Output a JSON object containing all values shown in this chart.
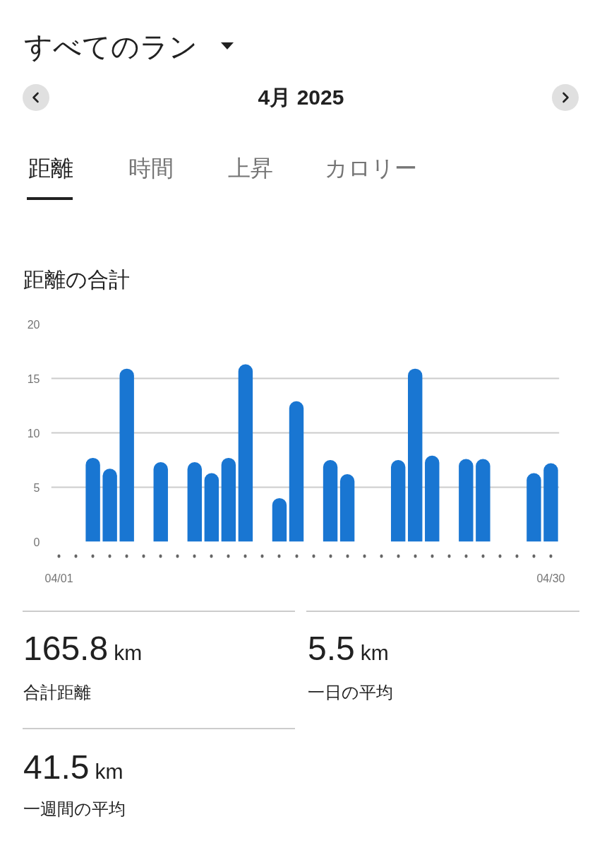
{
  "chart_data": {
    "type": "bar",
    "title": "距離の合計",
    "categories": [
      "04/01",
      null,
      null,
      null,
      null,
      null,
      null,
      null,
      null,
      null,
      null,
      null,
      null,
      null,
      null,
      null,
      null,
      null,
      null,
      null,
      null,
      null,
      null,
      null,
      null,
      null,
      null,
      null,
      null,
      "04/30"
    ],
    "values": [
      null,
      null,
      7.7,
      6.7,
      15.9,
      null,
      7.3,
      null,
      7.3,
      6.3,
      7.7,
      16.3,
      null,
      4.0,
      12.9,
      null,
      7.5,
      6.2,
      null,
      null,
      7.5,
      15.9,
      7.9,
      null,
      7.6,
      7.6,
      null,
      null,
      6.3,
      7.2
    ],
    "color": "#1976d2",
    "ylim": [
      0,
      20
    ],
    "yticks": [
      0,
      5,
      10,
      15,
      20
    ],
    "grid": "y",
    "annotations": [
      "すべてのラン",
      "4月 2025",
      "距離",
      "時間",
      "上昇",
      "カロリー",
      "165.8 km",
      "合計距離",
      "5.5 km",
      "一日の平均",
      "41.5 km",
      "一週間の平均"
    ]
  }
}
